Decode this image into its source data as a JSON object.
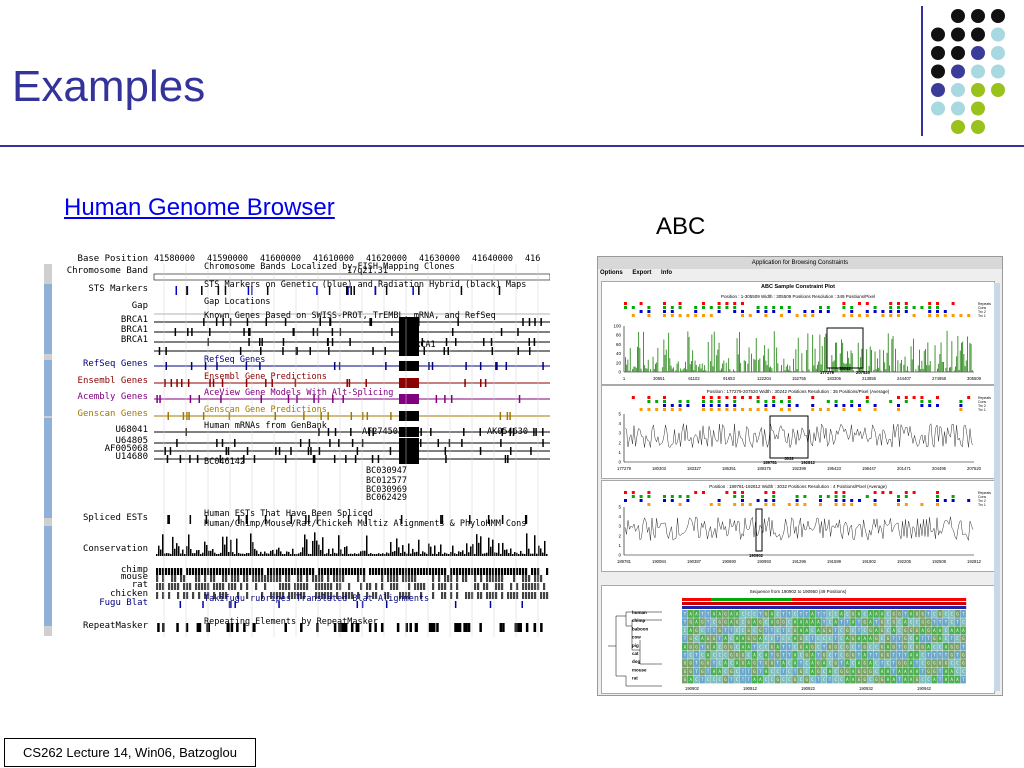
{
  "slide": {
    "title": "Examples",
    "link_text": "Human Genome Browser",
    "abc_label": "ABC",
    "footer": "CS262 Lecture 14, Win06, Batzoglou"
  },
  "colors": {
    "accent": "#33339a",
    "dot_black": "#111111",
    "dot_purple": "#3b3b9a",
    "dot_lightblue": "#a8d8e0",
    "dot_green": "#99c21c"
  },
  "dots": [
    [
      "",
      "black",
      "black",
      "black"
    ],
    [
      "black",
      "black",
      "black",
      "lightblue"
    ],
    [
      "black",
      "black",
      "purple",
      "lightblue"
    ],
    [
      "black",
      "purple",
      "lightblue",
      "lightblue"
    ],
    [
      "purple",
      "lightblue",
      "green",
      "green"
    ],
    [
      "lightblue",
      "lightblue",
      "green",
      ""
    ],
    [
      "",
      "green",
      "green",
      ""
    ]
  ],
  "genome_browser": {
    "header_label": "Base Position",
    "positions": [
      "41580000",
      "41590000",
      "41600000",
      "41610000",
      "41620000",
      "41630000",
      "41640000",
      "416"
    ],
    "rows": [
      {
        "label": "Chromosome Band",
        "color": "#000000",
        "caption": "Chromosome Bands Localized by FISH Mapping Clones"
      },
      {
        "label": "STS Markers",
        "color": "#000000",
        "caption": "STS Markers on Genetic (blue) and Radiation Hybrid (black) Maps"
      },
      {
        "label": "Gap",
        "color": "#000000",
        "caption": "Gap Locations"
      },
      {
        "label": "BRCA1",
        "color": "#000000",
        "caption": "Known Genes Based on SWISS-PROT, TrEMBL, mRNA, and RefSeq"
      },
      {
        "label": "BRCA1",
        "color": "#000000",
        "caption": ""
      },
      {
        "label": "BRCA1",
        "color": "#000000",
        "caption": ""
      },
      {
        "label": "",
        "color": "#000000",
        "caption": "BRCA1"
      },
      {
        "label": "RefSeq Genes",
        "color": "#000080",
        "caption": "RefSeq Genes"
      },
      {
        "label": "Ensembl Genes",
        "color": "#8b0000",
        "caption": "Ensembl Gene Predictions"
      },
      {
        "label": "Acembly Genes",
        "color": "#800080",
        "caption": "AceView Gene Models With Alt-Splicing"
      },
      {
        "label": "Genscan Genes",
        "color": "#a07800",
        "caption": "Genscan Gene Predictions"
      },
      {
        "label": "U68041",
        "color": "#000000",
        "caption": "Human mRNAs from GenBank"
      },
      {
        "label": "U64805",
        "color": "#000000",
        "caption": ""
      },
      {
        "label": "AF005068",
        "color": "#000000",
        "caption": ""
      },
      {
        "label": "U14680",
        "color": "#000000",
        "caption": ""
      },
      {
        "label": "",
        "color": "#000000",
        "caption": "BC046142"
      },
      {
        "label": "",
        "color": "#000000",
        "caption": "BC030947"
      },
      {
        "label": "",
        "color": "#000000",
        "caption": "BC012577"
      },
      {
        "label": "",
        "color": "#000000",
        "caption": "BC030969"
      },
      {
        "label": "",
        "color": "#000000",
        "caption": "BC062429"
      },
      {
        "label": "Spliced ESTs",
        "color": "#000000",
        "caption": "Human ESTs That Have Been Spliced"
      },
      {
        "label": "",
        "color": "#000000",
        "caption": "Human/Chimp/Mouse/Rat/Chicken Multiz Alignments & PhyloHMM Cons"
      },
      {
        "label": "Conservation",
        "color": "#000000",
        "caption": ""
      },
      {
        "label": "chimp",
        "color": "#000000",
        "caption": ""
      },
      {
        "label": "mouse",
        "color": "#000000",
        "caption": ""
      },
      {
        "label": "rat",
        "color": "#000000",
        "caption": ""
      },
      {
        "label": "chicken",
        "color": "#000000",
        "caption": ""
      },
      {
        "label": "Fugu Blat",
        "color": "#000080",
        "caption": "Takifugu rubripes Translated Blat Alignments"
      },
      {
        "label": "RepeatMasker",
        "color": "#000000",
        "caption": "Repeating Elements by RepeatMasker"
      }
    ],
    "extra_labels": {
      "band": "17q21.31",
      "af": "AF274503",
      "ak": "AK054630"
    }
  },
  "abc_window": {
    "window_title": "Application for Browsing Constraints",
    "menu": [
      "Options",
      "Export",
      "Info"
    ],
    "plot_title": "ABC Sample Constraint Plot",
    "panel1_info": "Position : 1-305509     Width : 305509 Positions     Resolution : 349 Positions/Pixel",
    "panel1_xticks": [
      "1",
      "30551",
      "61102",
      "91653",
      "122204",
      "152755",
      "183306",
      "213856",
      "244407",
      "274958",
      "305509"
    ],
    "panel1_yticks": [
      "100",
      "80",
      "60",
      "40",
      "20",
      "0"
    ],
    "panel1_marks": [
      "177279",
      "30242",
      "207520"
    ],
    "panel2_info": "Position : 177279-207520     Width : 30242 Positions     Resolution : 35 Positions/Pixel     (Average)",
    "panel2_xticks": [
      "177279",
      "180303",
      "183327",
      "186351",
      "189375",
      "192399",
      "195423",
      "198447",
      "201471",
      "204495",
      "207520"
    ],
    "panel2_yticks": [
      "5",
      "4",
      "3",
      "2",
      "1",
      "0"
    ],
    "panel2_marks": [
      "189781",
      "3032",
      "192812"
    ],
    "panel3_info": "Position : 189781-192812     Width : 3032 Positions     Resolution : 4 Positions/Pixel     (Average)",
    "panel3_xticks": [
      "189781",
      "190084",
      "190387",
      "190690",
      "190993",
      "191296",
      "191599",
      "191902",
      "192205",
      "192508",
      "192812"
    ],
    "panel3_yticks": [
      "5",
      "4",
      "3",
      "2",
      "1",
      "0"
    ],
    "panel3_marks": [
      "190902"
    ],
    "legend": [
      "Repeats",
      "Cons",
      "Trx 2",
      "Trx 1"
    ],
    "seq_title": "Sequence from 190902 to 190950     (49 Positions)",
    "species": [
      "human",
      "chimp",
      "baboon",
      "cow",
      "pig",
      "cat",
      "dog",
      "mouse",
      "rat"
    ],
    "seq_xticks": [
      "190902",
      "190912",
      "190922",
      "190932",
      "190942"
    ]
  }
}
